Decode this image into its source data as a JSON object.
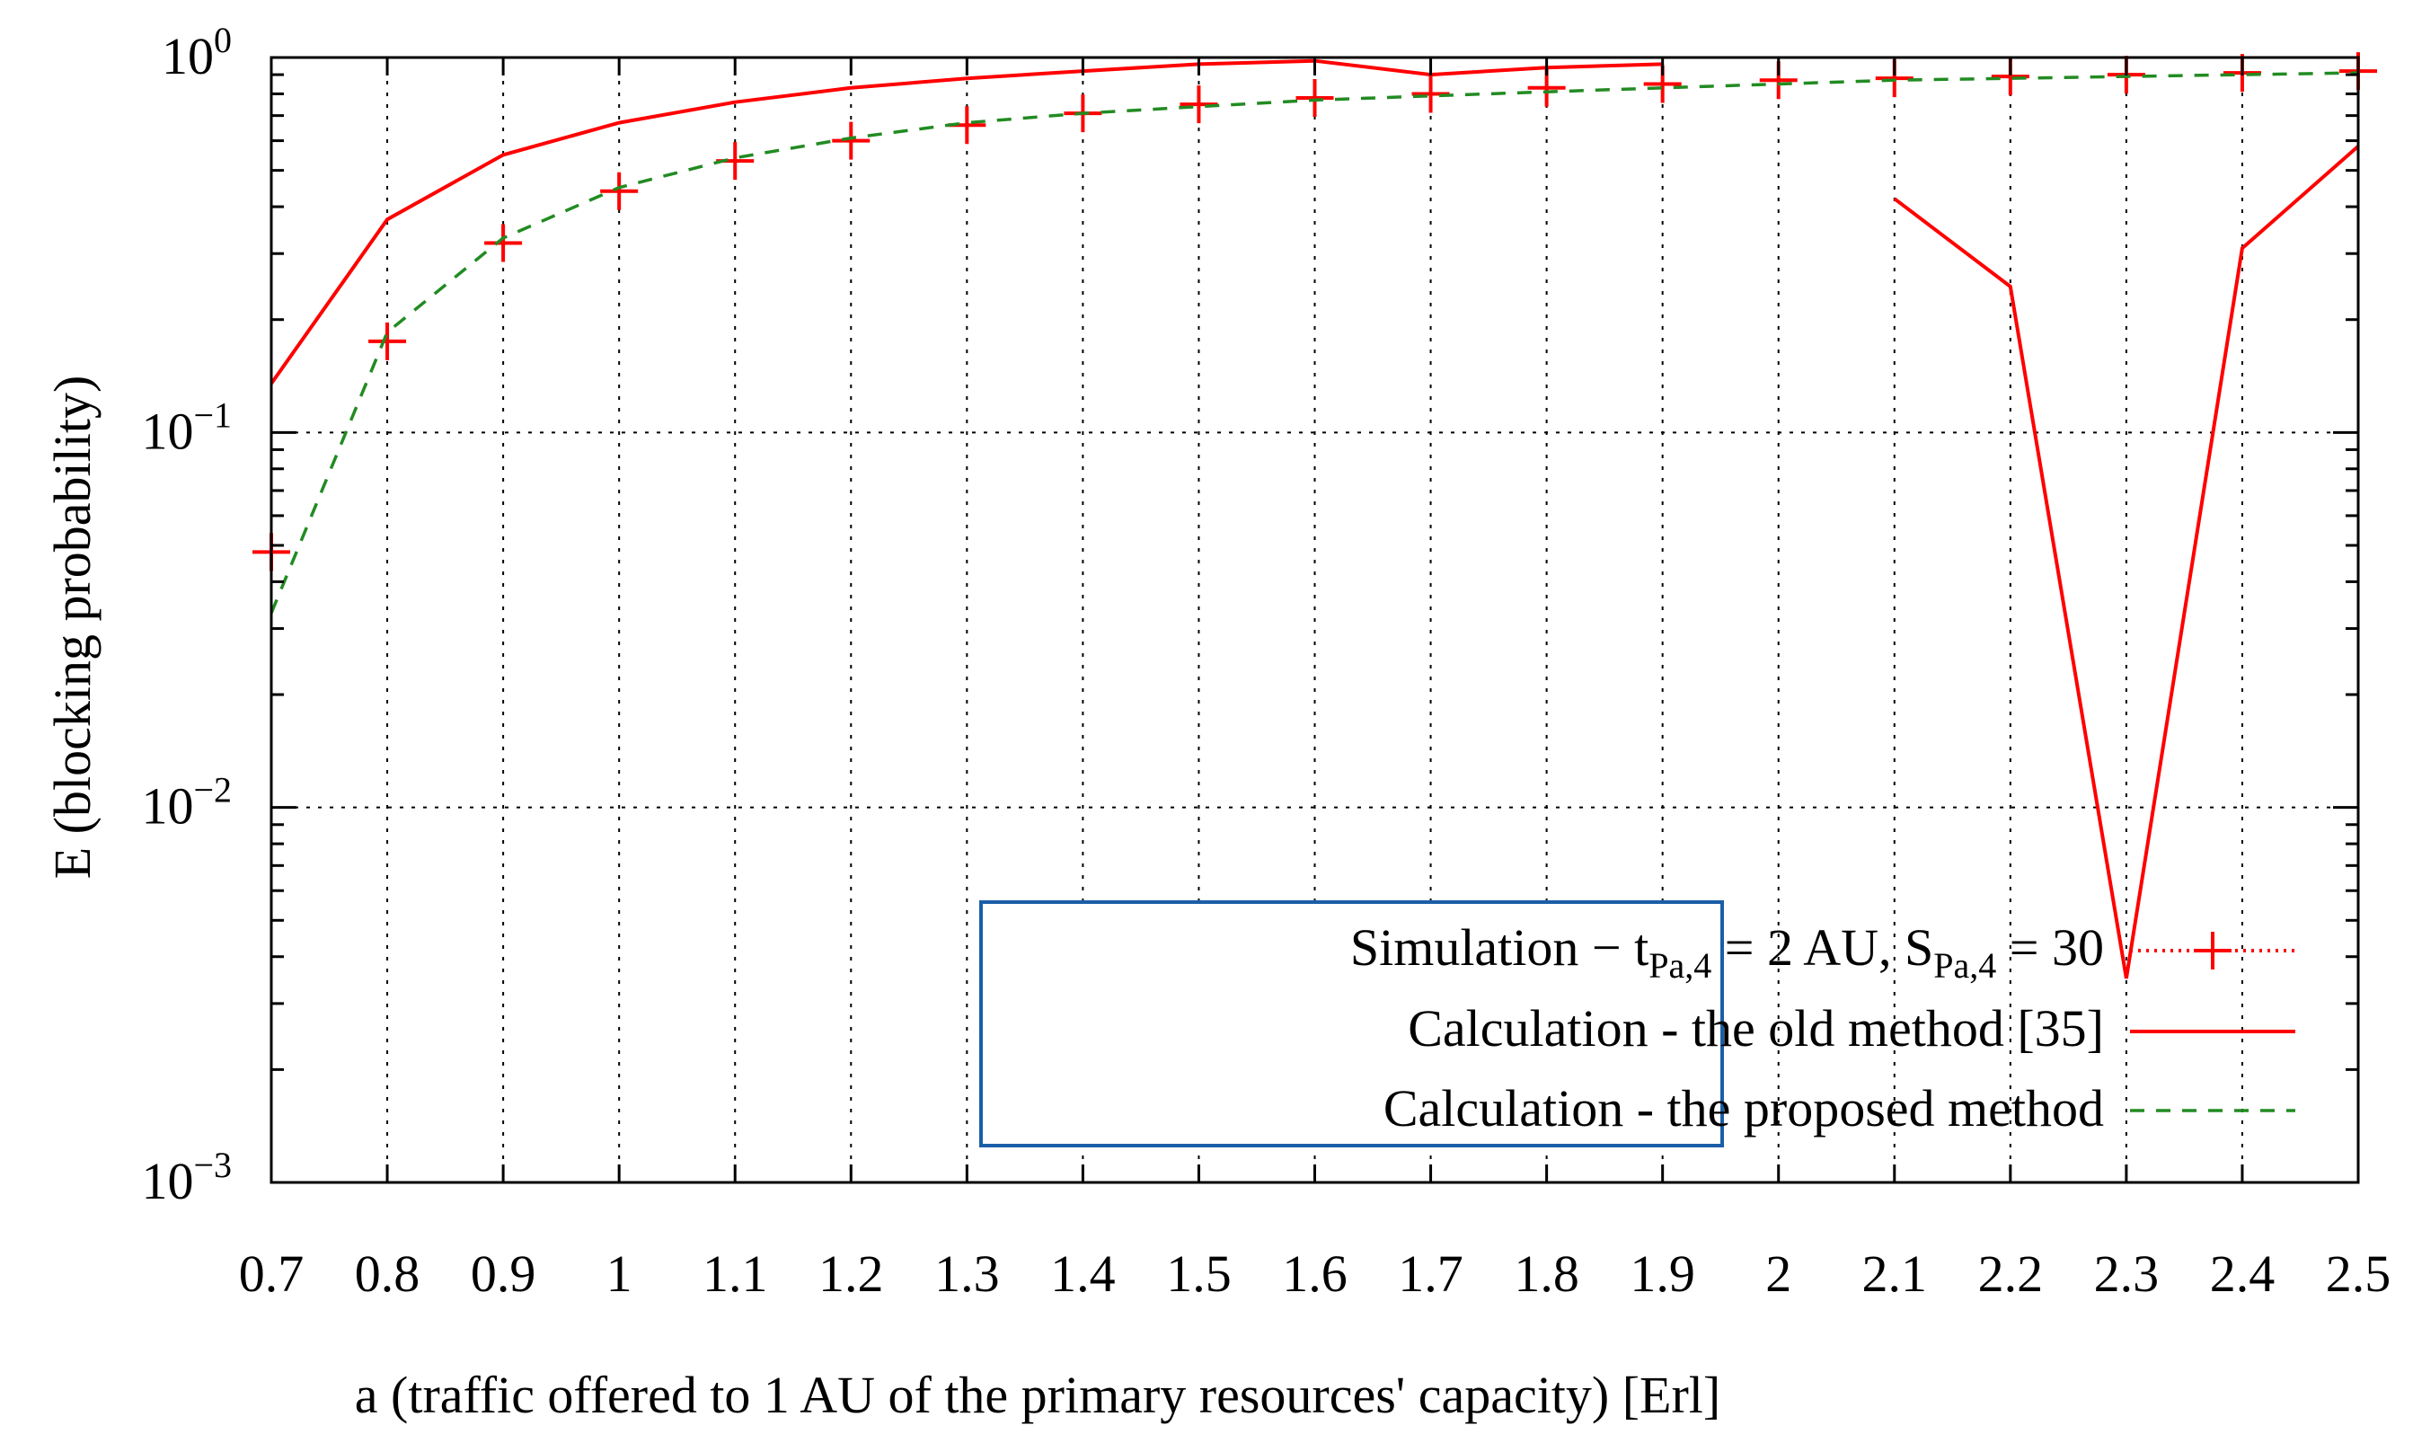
{
  "chart_data": {
    "type": "line",
    "title": "",
    "xlabel": "a (traffic offered to 1 AU of the primary resources' capacity) [Erl]",
    "ylabel": "E (blocking probability)",
    "xlim": [
      0.7,
      2.5
    ],
    "ylim": [
      0.001,
      1
    ],
    "yscale": "log",
    "grid": true,
    "x_tick_labels": [
      "0.7",
      "0.8",
      "0.9",
      "1",
      "1.1",
      "1.2",
      "1.3",
      "1.4",
      "1.5",
      "1.6",
      "1.7",
      "1.8",
      "1.9",
      "2",
      "2.1",
      "2.2",
      "2.3",
      "2.4",
      "2.5"
    ],
    "y_ticks": [
      {
        "value": 1,
        "base": "10",
        "exp": "0"
      },
      {
        "value": 0.1,
        "base": "10",
        "exp": "−1"
      },
      {
        "value": 0.01,
        "base": "10",
        "exp": "−2"
      },
      {
        "value": 0.001,
        "base": "10",
        "exp": "−3"
      }
    ],
    "legend_position": "bottom-right",
    "series": [
      {
        "name": "Simulation",
        "legend": {
          "prefix": "Simulation − t",
          "sub1": "Pa,4",
          "mid": " = 2 AU, S",
          "sub2": "Pa,4",
          "suffix": " = 30"
        },
        "style": "points-plus",
        "color": "#ff0000",
        "x": [
          0.7,
          0.8,
          0.9,
          1.0,
          1.1,
          1.2,
          1.3,
          1.4,
          1.5,
          1.6,
          1.7,
          1.8,
          1.9,
          2.0,
          2.1,
          2.2,
          2.3,
          2.4,
          2.5
        ],
        "values": [
          0.048,
          0.175,
          0.32,
          0.44,
          0.53,
          0.6,
          0.66,
          0.71,
          0.75,
          0.78,
          0.8,
          0.83,
          0.85,
          0.87,
          0.88,
          0.89,
          0.9,
          0.91,
          0.92
        ]
      },
      {
        "name": "Calculation - the old method [35]",
        "legend": {
          "prefix": "Calculation - the old method [35]"
        },
        "style": "solid",
        "color": "#ff0000",
        "segments": [
          {
            "x": [
              0.7,
              0.8,
              0.9,
              1.0,
              1.1,
              1.2,
              1.3,
              1.4,
              1.5,
              1.6,
              1.7,
              1.8,
              1.9
            ],
            "values": [
              0.135,
              0.37,
              0.55,
              0.67,
              0.76,
              0.83,
              0.88,
              0.92,
              0.96,
              0.98,
              0.9,
              0.94,
              0.96
            ]
          },
          {
            "x": [
              2.1,
              2.2,
              2.3,
              2.4,
              2.5
            ],
            "values": [
              0.42,
              0.245,
              0.0035,
              0.31,
              0.58
            ]
          }
        ]
      },
      {
        "name": "Calculation - the proposed method",
        "legend": {
          "prefix": "Calculation - the proposed method"
        },
        "style": "dashed",
        "color": "#228b22",
        "x": [
          0.7,
          0.8,
          0.9,
          1.0,
          1.1,
          1.2,
          1.3,
          1.4,
          1.5,
          1.6,
          1.7,
          1.8,
          1.9,
          2.0,
          2.1,
          2.2,
          2.3,
          2.4,
          2.5
        ],
        "values": [
          0.033,
          0.185,
          0.33,
          0.45,
          0.54,
          0.61,
          0.67,
          0.71,
          0.74,
          0.77,
          0.79,
          0.81,
          0.83,
          0.85,
          0.87,
          0.88,
          0.89,
          0.9,
          0.91
        ]
      }
    ]
  }
}
